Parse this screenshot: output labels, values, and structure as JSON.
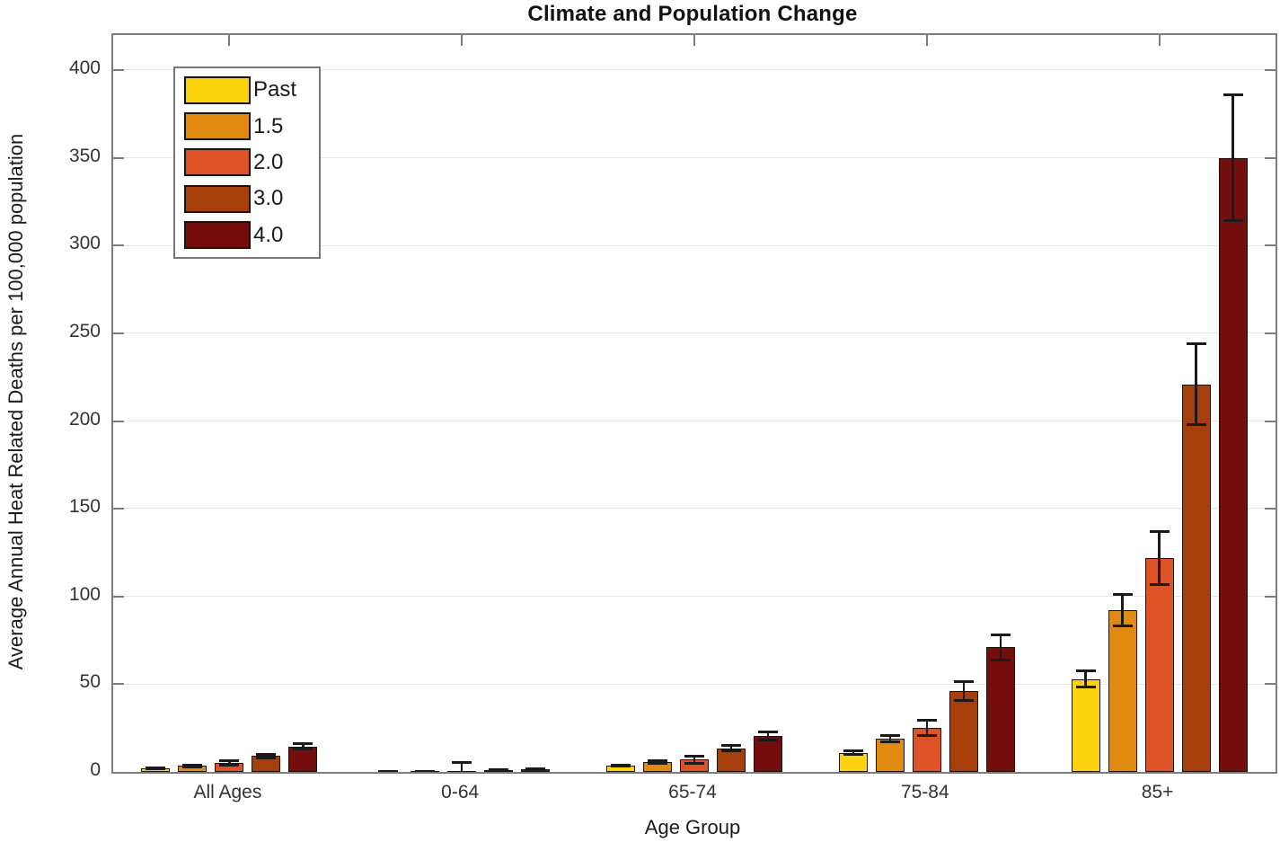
{
  "chart_data": {
    "type": "bar",
    "title": "Climate and Population Change",
    "xlabel": "Age Group",
    "ylabel": "Average Annual Heat Related Deaths per 100,000 population",
    "categories": [
      "All Ages",
      "0-64",
      "65-74",
      "75-84",
      "85+"
    ],
    "series": [
      {
        "name": "Past",
        "color": "#fbd30e",
        "values": [
          2,
          0.2,
          3.5,
          11,
          53
        ],
        "errors": [
          0.4,
          0.1,
          0.4,
          1.2,
          4.5
        ]
      },
      {
        "name": "1.5",
        "color": "#e08a12",
        "values": [
          3.5,
          0.3,
          5.5,
          19,
          92
        ],
        "errors": [
          0.5,
          0.15,
          0.7,
          2,
          9
        ]
      },
      {
        "name": "2.0",
        "color": "#dd5226",
        "values": [
          5,
          0.7,
          7,
          25,
          122
        ],
        "errors": [
          1.2,
          4.5,
          2,
          4.5,
          15
        ]
      },
      {
        "name": "3.0",
        "color": "#a63f0c",
        "values": [
          9,
          1.0,
          13.5,
          46,
          221
        ],
        "errors": [
          1.0,
          0.3,
          1.5,
          5.5,
          23
        ]
      },
      {
        "name": "4.0",
        "color": "#730d0e",
        "values": [
          14.5,
          1.4,
          20.5,
          71,
          350
        ],
        "errors": [
          1.5,
          0.4,
          2.4,
          7,
          36
        ]
      }
    ],
    "ylim": [
      0,
      420
    ],
    "yticks": [
      0,
      50,
      100,
      150,
      200,
      250,
      300,
      350,
      400
    ],
    "grid": true,
    "legend_position": "upper-left",
    "colors": {
      "axis": "#7d7d7d",
      "grid": "#e7e7e7",
      "error_bar": "#1a1a1a",
      "background": "#ffffff"
    }
  }
}
